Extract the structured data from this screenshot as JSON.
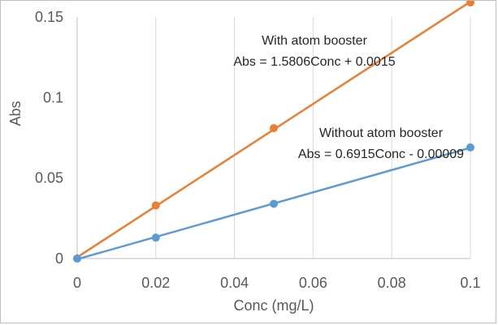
{
  "chart_data": {
    "type": "scatter",
    "title": "",
    "xlabel": "Conc (mg/L)",
    "ylabel": "Abs",
    "xlim": [
      0,
      0.1
    ],
    "ylim": [
      0,
      0.15
    ],
    "x_ticks": [
      0,
      0.02,
      0.04,
      0.06,
      0.08,
      0.1
    ],
    "x_tick_labels": [
      "0",
      "0.02",
      "0.04",
      "0.06",
      "0.08",
      "0.1"
    ],
    "y_ticks": [
      0,
      0.05,
      0.1,
      0.15
    ],
    "y_tick_labels": [
      "0",
      "0.05",
      "0.1",
      "0.15"
    ],
    "grid": "vertical",
    "legend": "none",
    "series": [
      {
        "color": "#ED7D31",
        "x": [
          0,
          0.02,
          0.05,
          0.1
        ],
        "y": [
          0,
          0.033,
          0.081,
          0.159
        ]
      },
      {
        "color": "#5B9BD5",
        "x": [
          0,
          0.02,
          0.05,
          0.1
        ],
        "y": [
          0,
          0.013,
          0.034,
          0.069
        ]
      }
    ],
    "annotations": [
      {
        "series": 0,
        "lines": [
          "With atom booster",
          "Abs = 1.5806Conc + 0.0015"
        ]
      },
      {
        "series": 1,
        "lines": [
          "Without atom booster",
          "Abs = 0.6915Conc -  0.00009"
        ]
      }
    ]
  }
}
